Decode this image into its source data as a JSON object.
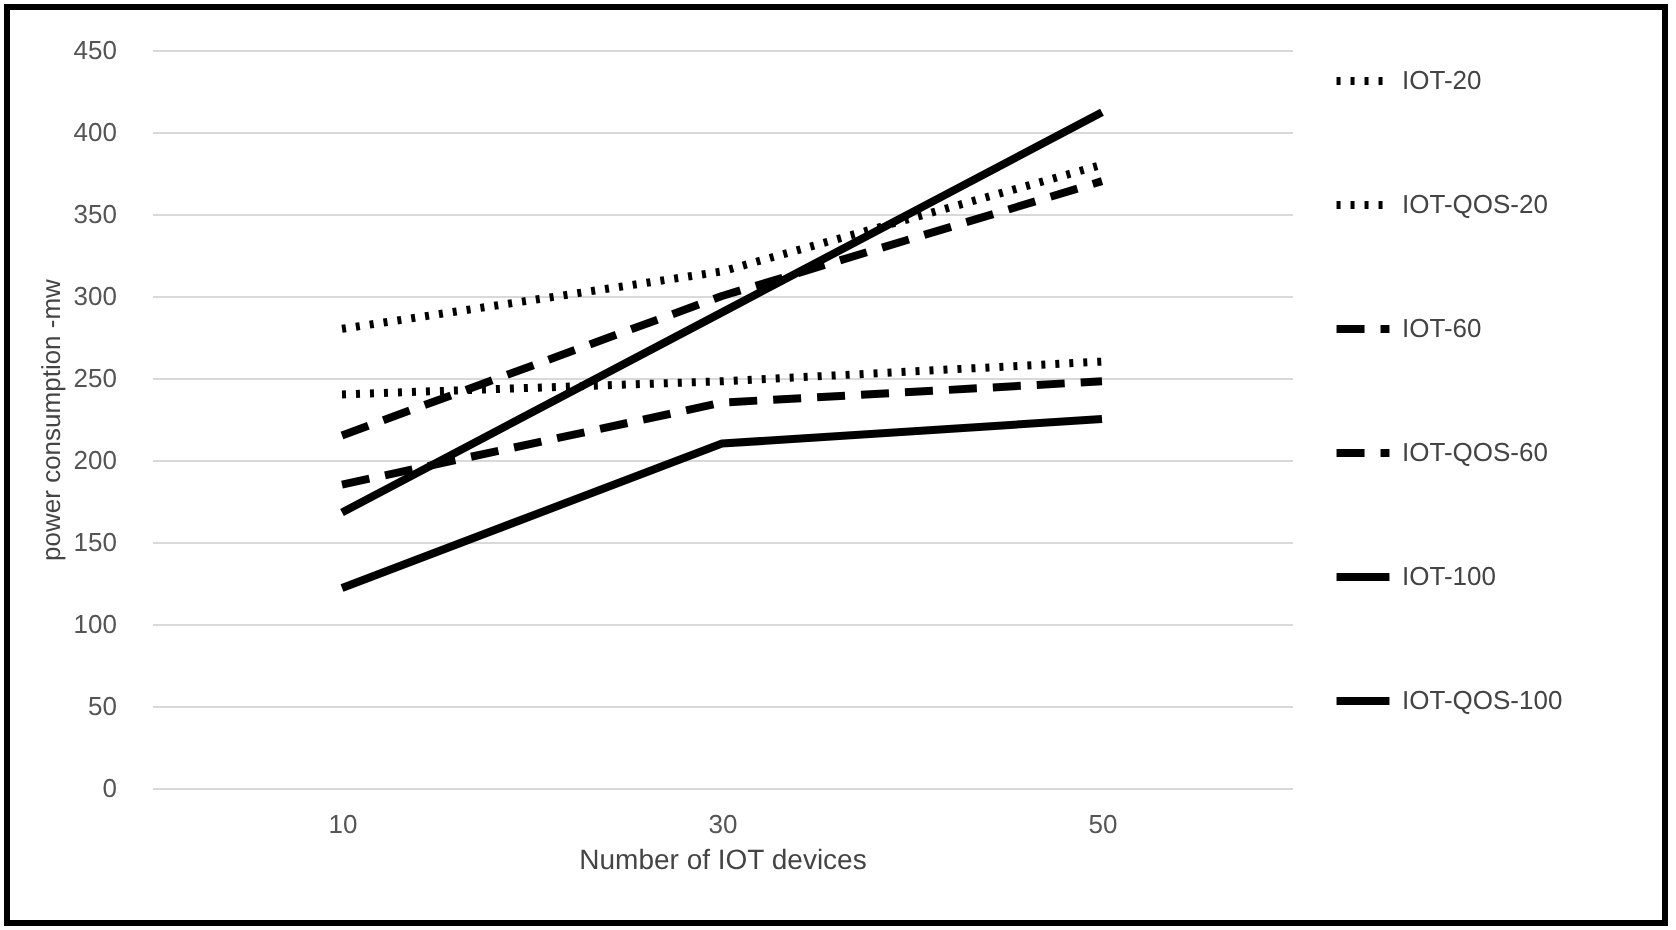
{
  "chart_data": {
    "type": "line",
    "xlabel": "Number of IOT devices",
    "ylabel": "power consumption -mw",
    "categories": [
      "10",
      "30",
      "50"
    ],
    "ylim": [
      0,
      450
    ],
    "yticks": [
      0,
      50,
      100,
      150,
      200,
      250,
      300,
      350,
      400,
      450
    ],
    "grid": "y",
    "legend": "right",
    "series": [
      {
        "name": "IOT-20",
        "color": "#000000",
        "line_style": "dotted",
        "values": [
          280,
          315,
          380
        ]
      },
      {
        "name": "IOT-QOS-20",
        "color": "#000000",
        "line_style": "dotted",
        "values": [
          240,
          248,
          260
        ]
      },
      {
        "name": "IOT-60",
        "color": "#000000",
        "line_style": "dashed",
        "values": [
          215,
          300,
          370
        ]
      },
      {
        "name": "IOT-QOS-60",
        "color": "#000000",
        "line_style": "dashed",
        "values": [
          185,
          235,
          248
        ]
      },
      {
        "name": "IOT-100",
        "color": "#000000",
        "line_style": "solid",
        "values": [
          168,
          290,
          412
        ]
      },
      {
        "name": "IOT-QOS-100",
        "color": "#000000",
        "line_style": "solid",
        "values": [
          122,
          210,
          225
        ]
      }
    ]
  }
}
